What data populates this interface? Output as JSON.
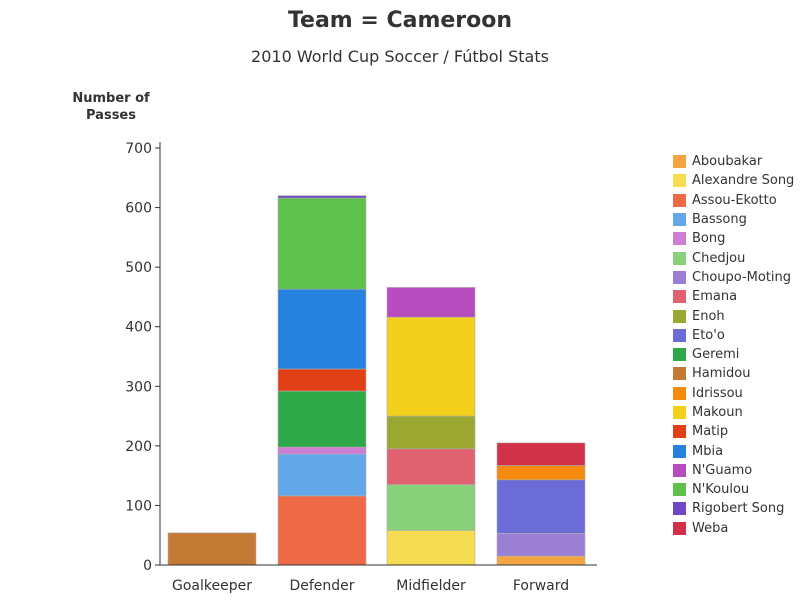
{
  "title": "Team = Cameroon",
  "subtitle": "2010 World Cup Soccer / Fútbol Stats",
  "chart_data": {
    "type": "bar",
    "stacked": true,
    "title": "Team = Cameroon",
    "subtitle": "2010 World Cup Soccer / Fútbol Stats",
    "ylabel": "Number of Passes",
    "xlabel": "",
    "categories": [
      "Goalkeeper",
      "Defender",
      "Midfielder",
      "Forward"
    ],
    "ylim": [
      0,
      700
    ],
    "yticks": [
      0,
      100,
      200,
      300,
      400,
      500,
      600,
      700
    ],
    "grid": false,
    "legend_position": "right",
    "series": [
      {
        "name": "Aboubakar",
        "color": "#f5a442",
        "values": [
          0,
          0,
          0,
          15
        ]
      },
      {
        "name": "Alexandre Song",
        "color": "#f5dc50",
        "values": [
          0,
          0,
          58,
          0
        ]
      },
      {
        "name": "Assou-Ekotto",
        "color": "#ee6a46",
        "values": [
          0,
          116,
          0,
          0
        ]
      },
      {
        "name": "Bassong",
        "color": "#62a8e8",
        "values": [
          0,
          70,
          0,
          0
        ]
      },
      {
        "name": "Bong",
        "color": "#cf7fd3",
        "values": [
          0,
          12,
          0,
          0
        ]
      },
      {
        "name": "Chedjou",
        "color": "#88d07a",
        "values": [
          0,
          0,
          77,
          0
        ]
      },
      {
        "name": "Choupo-Moting",
        "color": "#9b7fd4",
        "values": [
          0,
          0,
          0,
          38
        ]
      },
      {
        "name": "Emana",
        "color": "#e0616f",
        "values": [
          0,
          0,
          60,
          0
        ]
      },
      {
        "name": "Enoh",
        "color": "#9aa832",
        "values": [
          0,
          0,
          55,
          0
        ]
      },
      {
        "name": "Eto'o",
        "color": "#6c6cd8",
        "values": [
          0,
          0,
          0,
          90
        ]
      },
      {
        "name": "Geremi",
        "color": "#2fa84a",
        "values": [
          0,
          94,
          0,
          0
        ]
      },
      {
        "name": "Hamidou",
        "color": "#c27a35",
        "values": [
          54,
          0,
          0,
          0
        ]
      },
      {
        "name": "Idrissou",
        "color": "#f58a0c",
        "values": [
          0,
          0,
          0,
          24
        ]
      },
      {
        "name": "Makoun",
        "color": "#f2d01c",
        "values": [
          0,
          0,
          166,
          0
        ]
      },
      {
        "name": "Matip",
        "color": "#e13f16",
        "values": [
          0,
          37,
          0,
          0
        ]
      },
      {
        "name": "Mbia",
        "color": "#2782df",
        "values": [
          0,
          134,
          0,
          0
        ]
      },
      {
        "name": "N'Guamo",
        "color": "#b64cbd",
        "values": [
          0,
          0,
          50,
          0
        ]
      },
      {
        "name": "N'Koulou",
        "color": "#5fc04b",
        "values": [
          0,
          153,
          0,
          0
        ]
      },
      {
        "name": "Rigobert Song",
        "color": "#7048c6",
        "values": [
          0,
          4,
          0,
          0
        ]
      },
      {
        "name": "Weba",
        "color": "#d1324a",
        "values": [
          0,
          0,
          0,
          38
        ]
      }
    ]
  }
}
